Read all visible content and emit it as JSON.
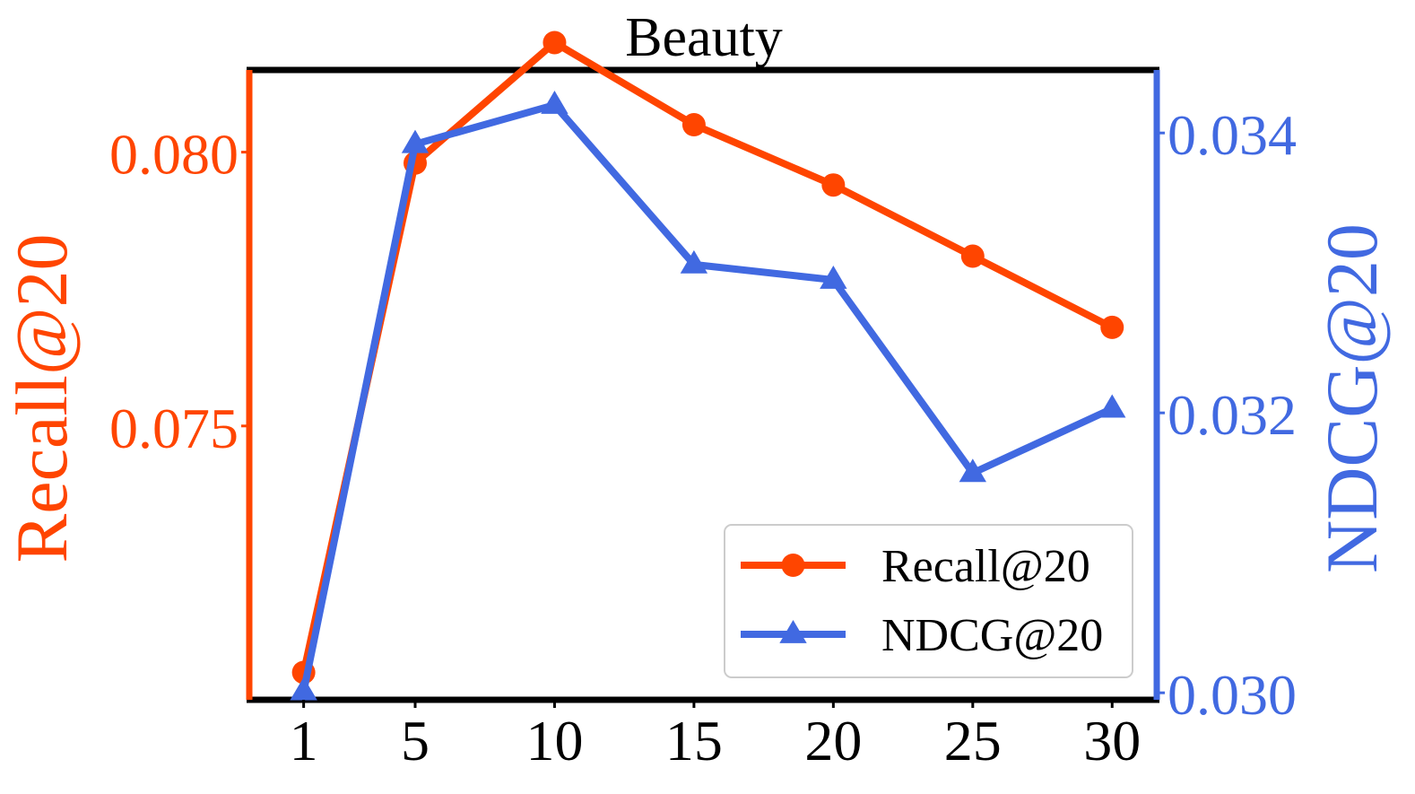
{
  "chart_data": {
    "type": "line",
    "title": "Beauty",
    "xlabel": "",
    "x": [
      1,
      5,
      10,
      15,
      20,
      25,
      30
    ],
    "x_tick_labels": [
      "1",
      "5",
      "10",
      "15",
      "20",
      "25",
      "30"
    ],
    "y_left": {
      "label": "Recall@20",
      "ylim": [
        0.07,
        0.0815
      ],
      "ticks": [
        0.075,
        0.08
      ],
      "tick_labels": [
        "0.075",
        "0.080"
      ],
      "color": "#ff4500"
    },
    "y_right": {
      "label": "NDCG@20",
      "ylim": [
        0.02995,
        0.03445
      ],
      "ticks": [
        0.03,
        0.032,
        0.034
      ],
      "tick_labels": [
        "0.030",
        "0.032",
        "0.034"
      ],
      "color": "#4169e1"
    },
    "series": [
      {
        "name": "Recall@20",
        "axis": "left",
        "marker": "circle",
        "color": "#ff4500",
        "values": [
          0.0705,
          0.0798,
          0.082,
          0.0805,
          0.0794,
          0.0781,
          0.0768
        ]
      },
      {
        "name": "NDCG@20",
        "axis": "right",
        "marker": "triangle",
        "color": "#4169e1",
        "values": [
          0.03001,
          0.03392,
          0.0342,
          0.03306,
          0.03295,
          0.03157,
          0.03203
        ]
      }
    ],
    "legend": {
      "position": "lower-right",
      "entries": [
        "Recall@20",
        "NDCG@20"
      ]
    },
    "grid": false
  }
}
